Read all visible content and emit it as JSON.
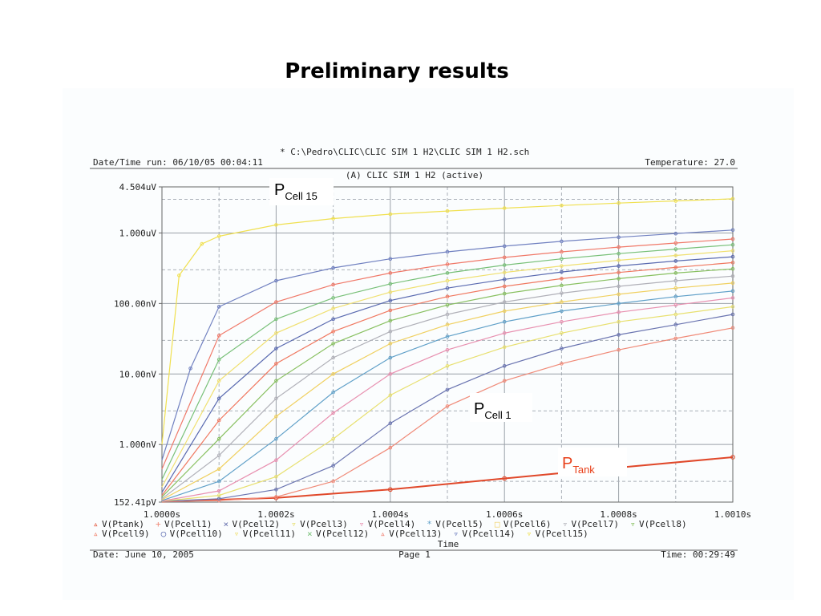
{
  "slide": {
    "title": "Preliminary results"
  },
  "printout": {
    "file_path": "* C:\\Pedro\\CLIC\\CLIC SIM 1 H2\\CLIC SIM 1 H2.sch",
    "date_time_run": "Date/Time run: 06/10/05 00:04:11",
    "temperature": "Temperature: 27.0",
    "plot_title": "(A) CLIC SIM 1 H2 (active)",
    "footer_date": "Date: June 10, 2005",
    "footer_page": "Page 1",
    "footer_time": "Time: 00:29:49"
  },
  "annotations": [
    {
      "main": "P",
      "sub": "Cell 15",
      "color": "#000000"
    },
    {
      "main": "P",
      "sub": "Cell 1",
      "color": "#000000"
    },
    {
      "main": "P",
      "sub": "Tank",
      "color": "#e8401a"
    }
  ],
  "chart_data": {
    "type": "line",
    "xlabel": "Time",
    "ylabel": "",
    "x_scale": "linear",
    "y_scale": "log",
    "xlim": [
      1.0,
      1.001
    ],
    "ylim": [
      1.5241e-10,
      4.504e-06
    ],
    "x_ticks": [
      {
        "value": 1.0,
        "label": "1.0000s"
      },
      {
        "value": 1.0002,
        "label": "1.0002s"
      },
      {
        "value": 1.0004,
        "label": "1.0004s"
      },
      {
        "value": 1.0006,
        "label": "1.0006s"
      },
      {
        "value": 1.0008,
        "label": "1.0008s"
      },
      {
        "value": 1.001,
        "label": "1.0010s"
      }
    ],
    "y_ticks": [
      {
        "value": 4.504e-06,
        "label": "4.504uV"
      },
      {
        "value": 1e-06,
        "label": "1.000uV"
      },
      {
        "value": 1e-07,
        "label": "100.00nV"
      },
      {
        "value": 1e-08,
        "label": "10.00nV"
      },
      {
        "value": 1e-09,
        "label": "1.000nV"
      },
      {
        "value": 1.5241e-10,
        "label": "152.41pV"
      }
    ],
    "grid": true,
    "legend_position": "bottom",
    "legend_rows": [
      [
        {
          "name": "V(Ptank)",
          "marker": "▵",
          "color": "#e0482a"
        },
        {
          "name": "V(Pcell1)",
          "marker": "+",
          "color": "#f08a78"
        },
        {
          "name": "V(Pcell2)",
          "marker": "×",
          "color": "#6a74b0"
        },
        {
          "name": "V(Pcell3)",
          "marker": "▿",
          "color": "#e8e070"
        },
        {
          "name": "V(Pcell4)",
          "marker": "▿",
          "color": "#e890b0"
        },
        {
          "name": "V(Pcell5)",
          "marker": "*",
          "color": "#60a0c8"
        },
        {
          "name": "V(Pcell6)",
          "marker": "□",
          "color": "#f0d060"
        },
        {
          "name": "V(Pcell7)",
          "marker": "▿",
          "color": "#b0b0b8"
        },
        {
          "name": "V(Pcell8)",
          "marker": "▿",
          "color": "#88c060"
        }
      ],
      [
        {
          "name": "V(Pcell9)",
          "marker": "▵",
          "color": "#f07860"
        },
        {
          "name": "V(Pcell10)",
          "marker": "○",
          "color": "#5a6ab0"
        },
        {
          "name": "V(Pcell11)",
          "marker": "▿",
          "color": "#f0e070"
        },
        {
          "name": "V(Pcell12)",
          "marker": "×",
          "color": "#78c078"
        },
        {
          "name": "V(Pcell13)",
          "marker": "▵",
          "color": "#f07868"
        },
        {
          "name": "V(Pcell14)",
          "marker": "▿",
          "color": "#7080c0"
        },
        {
          "name": "V(Pcell15)",
          "marker": "▿",
          "color": "#f0e050"
        }
      ]
    ],
    "series": [
      {
        "name": "V(Ptank)",
        "color": "#e0482a",
        "x": [
          1.0,
          1.0002,
          1.0004,
          1.0006,
          1.0008,
          1.001
        ],
        "y": [
          1.55e-10,
          1.75e-10,
          2.3e-10,
          3.3e-10,
          4.7e-10,
          6.6e-10
        ]
      },
      {
        "name": "V(Pcell1)",
        "color": "#f08a78",
        "x": [
          1.0,
          1.0001,
          1.0002,
          1.0003,
          1.0004,
          1.0005,
          1.0006,
          1.0007,
          1.0008,
          1.0009,
          1.001
        ],
        "y": [
          1.55e-10,
          1.6e-10,
          1.8e-10,
          3e-10,
          9e-10,
          3.5e-09,
          8e-09,
          1.4e-08,
          2.2e-08,
          3.2e-08,
          4.5e-08
        ]
      },
      {
        "name": "V(Pcell2)",
        "color": "#6a74b0",
        "x": [
          1.0,
          1.0001,
          1.0002,
          1.0003,
          1.0004,
          1.0005,
          1.0006,
          1.0007,
          1.0008,
          1.0009,
          1.001
        ],
        "y": [
          1.56e-10,
          1.7e-10,
          2.3e-10,
          5e-10,
          2e-09,
          6e-09,
          1.3e-08,
          2.3e-08,
          3.6e-08,
          5e-08,
          7e-08
        ]
      },
      {
        "name": "V(Pcell3)",
        "color": "#e8e070",
        "x": [
          1.0,
          1.0001,
          1.0002,
          1.0003,
          1.0004,
          1.0005,
          1.0006,
          1.0007,
          1.0008,
          1.0009,
          1.001
        ],
        "y": [
          1.57e-10,
          1.9e-10,
          3.5e-10,
          1.2e-09,
          5e-09,
          1.3e-08,
          2.4e-08,
          3.8e-08,
          5.5e-08,
          7e-08,
          9e-08
        ]
      },
      {
        "name": "V(Pcell4)",
        "color": "#e890b0",
        "x": [
          1.0,
          1.0001,
          1.0002,
          1.0003,
          1.0004,
          1.0005,
          1.0006,
          1.0007,
          1.0008,
          1.0009,
          1.001
        ],
        "y": [
          1.58e-10,
          2.2e-10,
          6e-10,
          2.8e-09,
          1e-08,
          2.2e-08,
          3.8e-08,
          5.5e-08,
          7.5e-08,
          9.5e-08,
          1.2e-07
        ]
      },
      {
        "name": "V(Pcell5)",
        "color": "#60a0c8",
        "x": [
          1.0,
          1.0001,
          1.0002,
          1.0003,
          1.0004,
          1.0005,
          1.0006,
          1.0007,
          1.0008,
          1.0009,
          1.001
        ],
        "y": [
          1.6e-10,
          3e-10,
          1.2e-09,
          5.5e-09,
          1.7e-08,
          3.4e-08,
          5.5e-08,
          7.8e-08,
          1e-07,
          1.25e-07,
          1.5e-07
        ]
      },
      {
        "name": "V(Pcell6)",
        "color": "#f0d060",
        "x": [
          1.0,
          1.0001,
          1.0002,
          1.0003,
          1.0004,
          1.0005,
          1.0006,
          1.0007,
          1.0008,
          1.0009,
          1.001
        ],
        "y": [
          1.65e-10,
          4.5e-10,
          2.5e-09,
          1e-08,
          2.7e-08,
          5e-08,
          7.8e-08,
          1.05e-07,
          1.35e-07,
          1.65e-07,
          1.95e-07
        ]
      },
      {
        "name": "V(Pcell7)",
        "color": "#b0b0b8",
        "x": [
          1.0,
          1.0001,
          1.0002,
          1.0003,
          1.0004,
          1.0005,
          1.0006,
          1.0007,
          1.0008,
          1.0009,
          1.001
        ],
        "y": [
          1.7e-10,
          7e-10,
          4.5e-09,
          1.7e-08,
          4e-08,
          7e-08,
          1.05e-07,
          1.4e-07,
          1.75e-07,
          2.1e-07,
          2.45e-07
        ]
      },
      {
        "name": "V(Pcell8)",
        "color": "#88c060",
        "x": [
          1.0,
          1.0001,
          1.0002,
          1.0003,
          1.0004,
          1.0005,
          1.0006,
          1.0007,
          1.0008,
          1.0009,
          1.001
        ],
        "y": [
          1.8e-10,
          1.2e-09,
          8e-09,
          2.7e-08,
          5.7e-08,
          9.5e-08,
          1.38e-07,
          1.8e-07,
          2.25e-07,
          2.7e-07,
          3.1e-07
        ]
      },
      {
        "name": "V(Pcell9)",
        "color": "#f07860",
        "x": [
          1.0,
          1.0001,
          1.0002,
          1.0003,
          1.0004,
          1.0005,
          1.0006,
          1.0007,
          1.0008,
          1.0009,
          1.001
        ],
        "y": [
          1.9e-10,
          2.2e-09,
          1.4e-08,
          4e-08,
          8e-08,
          1.25e-07,
          1.75e-07,
          2.25e-07,
          2.75e-07,
          3.25e-07,
          3.8e-07
        ]
      },
      {
        "name": "V(Pcell10)",
        "color": "#5a6ab0",
        "x": [
          1.0,
          1.0001,
          1.0002,
          1.0003,
          1.0004,
          1.0005,
          1.0006,
          1.0007,
          1.0008,
          1.0009,
          1.001
        ],
        "y": [
          2.1e-10,
          4.5e-09,
          2.3e-08,
          6e-08,
          1.1e-07,
          1.65e-07,
          2.2e-07,
          2.8e-07,
          3.4e-07,
          4e-07,
          4.6e-07
        ]
      },
      {
        "name": "V(Pcell11)",
        "color": "#f0e070",
        "x": [
          1.0,
          1.0001,
          1.0002,
          1.0003,
          1.0004,
          1.0005,
          1.0006,
          1.0007,
          1.0008,
          1.0009,
          1.001
        ],
        "y": [
          2.5e-10,
          8e-09,
          3.8e-08,
          8.5e-08,
          1.45e-07,
          2.1e-07,
          2.75e-07,
          3.4e-07,
          4.1e-07,
          4.8e-07,
          5.6e-07
        ]
      },
      {
        "name": "V(Pcell12)",
        "color": "#78c078",
        "x": [
          1.0,
          1.0001,
          1.0002,
          1.0003,
          1.0004,
          1.0005,
          1.0006,
          1.0007,
          1.0008,
          1.0009,
          1.001
        ],
        "y": [
          3.2e-10,
          1.6e-08,
          6e-08,
          1.2e-07,
          1.9e-07,
          2.7e-07,
          3.5e-07,
          4.3e-07,
          5.1e-07,
          5.9e-07,
          6.8e-07
        ]
      },
      {
        "name": "V(Pcell13)",
        "color": "#f07868",
        "x": [
          1.0,
          1.0001,
          1.0002,
          1.0003,
          1.0004,
          1.0005,
          1.0006,
          1.0007,
          1.0008,
          1.0009,
          1.001
        ],
        "y": [
          4.5e-10,
          3.5e-08,
          1.05e-07,
          1.85e-07,
          2.7e-07,
          3.6e-07,
          4.5e-07,
          5.4e-07,
          6.3e-07,
          7.2e-07,
          8.2e-07
        ]
      },
      {
        "name": "V(Pcell14)",
        "color": "#7080c0",
        "x": [
          1.0,
          1.00005,
          1.0001,
          1.0002,
          1.0003,
          1.0004,
          1.0005,
          1.0006,
          1.0007,
          1.0008,
          1.0009,
          1.001
        ],
        "y": [
          6e-10,
          1.2e-08,
          9e-08,
          2.1e-07,
          3.2e-07,
          4.3e-07,
          5.4e-07,
          6.5e-07,
          7.6e-07,
          8.7e-07,
          9.8e-07,
          1.1e-06
        ]
      },
      {
        "name": "V(Pcell15)",
        "color": "#f0e050",
        "x": [
          1.0,
          1.00003,
          1.00007,
          1.0001,
          1.0002,
          1.0003,
          1.0004,
          1.0005,
          1.0006,
          1.0007,
          1.0008,
          1.0009,
          1.001
        ],
        "y": [
          1e-09,
          2.5e-07,
          7e-07,
          9e-07,
          1.3e-06,
          1.6e-06,
          1.85e-06,
          2.05e-06,
          2.25e-06,
          2.45e-06,
          2.65e-06,
          2.85e-06,
          3.05e-06
        ]
      }
    ]
  }
}
